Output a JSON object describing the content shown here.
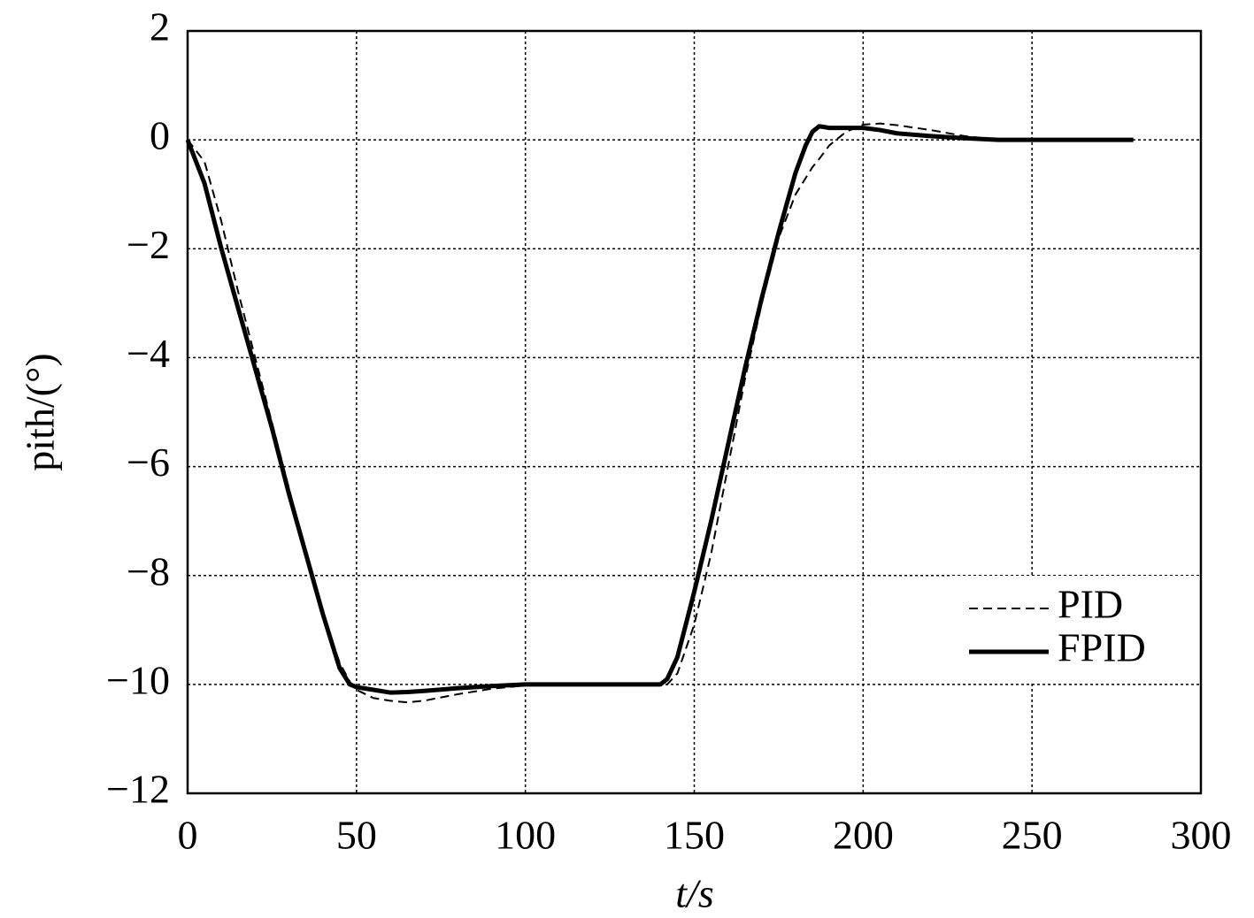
{
  "chart_data": {
    "type": "line",
    "x_label": "t/s",
    "y_label": "pith/(°)",
    "x": [
      0,
      5,
      10,
      15,
      20,
      25,
      30,
      35,
      40,
      45,
      48,
      50,
      55,
      60,
      65,
      70,
      80,
      90,
      100,
      120,
      140,
      142,
      145,
      150,
      155,
      160,
      165,
      170,
      175,
      180,
      183,
      185,
      187,
      190,
      195,
      200,
      205,
      210,
      220,
      230,
      240,
      250,
      260,
      280
    ],
    "series": [
      {
        "name": "PID",
        "color": "#000000",
        "dash": true,
        "values": [
          0,
          -0.4,
          -1.5,
          -2.8,
          -4.0,
          -5.2,
          -6.4,
          -7.6,
          -8.7,
          -9.6,
          -9.95,
          -10.1,
          -10.25,
          -10.3,
          -10.33,
          -10.3,
          -10.18,
          -10.08,
          -10.02,
          -10,
          -10,
          -10,
          -9.8,
          -8.9,
          -7.6,
          -6.0,
          -4.4,
          -3.0,
          -1.8,
          -1.0,
          -0.7,
          -0.5,
          -0.35,
          -0.1,
          0.15,
          0.28,
          0.3,
          0.27,
          0.18,
          0.07,
          0,
          0,
          0,
          0
        ]
      },
      {
        "name": "FPID",
        "color": "#000000",
        "dash": false,
        "values": [
          0,
          -0.8,
          -2.0,
          -3.1,
          -4.2,
          -5.3,
          -6.5,
          -7.6,
          -8.7,
          -9.7,
          -10.0,
          -10.05,
          -10.1,
          -10.15,
          -10.14,
          -10.12,
          -10.07,
          -10.03,
          -10.0,
          -10,
          -10,
          -9.9,
          -9.5,
          -8.3,
          -7.0,
          -5.6,
          -4.2,
          -2.9,
          -1.7,
          -0.6,
          -0.1,
          0.15,
          0.25,
          0.22,
          0.22,
          0.22,
          0.18,
          0.12,
          0.07,
          0.03,
          0,
          0,
          0,
          0
        ]
      }
    ],
    "xlim": [
      0,
      300
    ],
    "xticks": [
      0,
      50,
      100,
      150,
      200,
      250,
      300
    ],
    "ylim": [
      -12,
      2
    ],
    "yticks": [
      {
        "value": -12,
        "label": "−12"
      },
      {
        "value": -10,
        "label": "−10"
      },
      {
        "value": -8,
        "label": "−8"
      },
      {
        "value": -6,
        "label": "−6"
      },
      {
        "value": -4,
        "label": "−4"
      },
      {
        "value": -2,
        "label": "−2"
      },
      0,
      2
    ],
    "grid": true,
    "legend": "lower right"
  }
}
